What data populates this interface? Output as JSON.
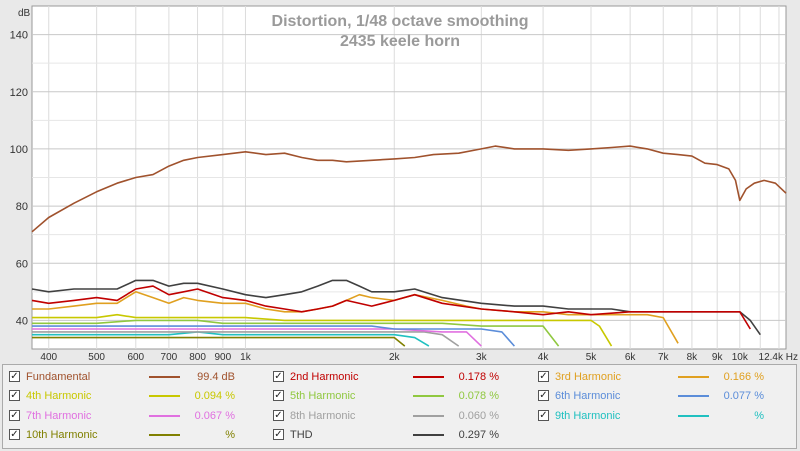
{
  "chart_data": {
    "type": "line",
    "title": "Distortion, 1/48 octave smoothing",
    "subtitle": "2435 keele horn",
    "ylabel": "dB",
    "xlabel": "",
    "x_scale": "log",
    "xlim": [
      370,
      12400
    ],
    "ylim": [
      30,
      150
    ],
    "grid": true,
    "y_ticks": [
      "40",
      "60",
      "80",
      "100",
      "120",
      "140"
    ],
    "y_tick_values": [
      40,
      60,
      80,
      100,
      120,
      140
    ],
    "x_tick_labels": [
      "400",
      "500",
      "600",
      "700",
      "800",
      "900",
      "1k",
      "2k",
      "3k",
      "4k",
      "5k",
      "6k",
      "7k",
      "8k",
      "9k",
      "10k",
      "12.4k Hz"
    ],
    "x_tick_values": [
      400,
      500,
      600,
      700,
      800,
      900,
      1000,
      2000,
      3000,
      4000,
      5000,
      6000,
      7000,
      8000,
      9000,
      10000,
      12400
    ],
    "series": [
      {
        "name": "Fundamental",
        "color": "#a0522d",
        "x": [
          370,
          400,
          450,
          500,
          550,
          600,
          650,
          700,
          750,
          800,
          900,
          1000,
          1100,
          1200,
          1300,
          1400,
          1500,
          1600,
          1800,
          2000,
          2200,
          2400,
          2700,
          3000,
          3200,
          3500,
          4000,
          4500,
          5000,
          5500,
          6000,
          6500,
          7000,
          7500,
          8000,
          8500,
          9000,
          9500,
          9800,
          10000,
          10300,
          10700,
          11200,
          11800,
          12400
        ],
        "y": [
          71,
          76,
          81,
          85,
          88,
          90,
          91,
          94,
          96,
          97,
          98,
          99,
          98,
          98.5,
          97,
          96,
          96,
          95.5,
          96,
          96.5,
          97,
          98,
          98.5,
          100,
          101,
          100,
          100,
          99.5,
          100,
          100.5,
          101,
          100,
          98.5,
          98,
          97.5,
          95,
          94.5,
          93,
          89,
          82,
          86,
          88,
          89,
          88,
          84.5
        ]
      },
      {
        "name": "2nd Harmonic",
        "color": "#c00000",
        "x": [
          370,
          400,
          450,
          500,
          550,
          600,
          650,
          700,
          750,
          800,
          900,
          1000,
          1100,
          1200,
          1300,
          1400,
          1500,
          1600,
          1800,
          2000,
          2200,
          2500,
          3000,
          3500,
          4000,
          4500,
          5000,
          6000,
          7000,
          8000,
          9000,
          10000,
          10500
        ],
        "y": [
          47,
          46,
          47,
          48,
          47,
          51,
          52,
          49,
          50,
          51,
          48,
          47,
          45,
          44,
          43,
          44,
          45,
          47,
          45,
          47,
          49,
          46,
          44,
          43,
          42,
          43,
          42,
          43,
          43,
          43,
          43,
          43,
          37
        ]
      },
      {
        "name": "3rd Harmonic",
        "color": "#e0a020",
        "x": [
          370,
          400,
          450,
          500,
          550,
          600,
          650,
          700,
          750,
          800,
          900,
          1000,
          1100,
          1200,
          1300,
          1400,
          1500,
          1600,
          1700,
          1800,
          2000,
          2200,
          2500,
          2800,
          3000,
          3500,
          4000,
          4500,
          5000,
          5500,
          6000,
          6500,
          7000,
          7500
        ],
        "y": [
          44,
          44,
          45,
          46,
          46,
          50,
          48,
          46,
          48,
          47,
          46,
          46,
          44,
          43,
          43,
          44,
          45,
          47,
          49,
          48,
          47,
          49,
          47,
          45,
          44,
          43,
          43,
          42,
          42,
          42,
          42,
          42,
          41,
          32
        ]
      },
      {
        "name": "4th Harmonic",
        "color": "#c8c800",
        "x": [
          370,
          400,
          450,
          500,
          550,
          600,
          700,
          800,
          900,
          1000,
          1200,
          1400,
          1600,
          1800,
          2000,
          2500,
          3000,
          3500,
          4000,
          4500,
          5000,
          5200,
          5500
        ],
        "y": [
          41,
          41,
          41,
          41,
          42,
          41,
          41,
          41,
          41,
          41,
          40,
          40,
          40,
          40,
          40,
          40,
          40,
          40,
          40,
          40,
          40,
          38,
          31
        ]
      },
      {
        "name": "5th Harmonic",
        "color": "#90c840",
        "x": [
          370,
          400,
          500,
          600,
          700,
          800,
          900,
          1000,
          1200,
          1400,
          1600,
          1800,
          2000,
          2500,
          3000,
          3500,
          4000,
          4300
        ],
        "y": [
          39,
          39,
          39,
          40,
          40,
          40,
          39,
          39,
          39,
          39,
          39,
          39,
          39,
          39,
          38,
          38,
          38,
          31
        ]
      },
      {
        "name": "6th Harmonic",
        "color": "#5b8dd9",
        "x": [
          370,
          400,
          500,
          600,
          700,
          800,
          900,
          1000,
          1200,
          1400,
          1600,
          1800,
          2000,
          2500,
          3000,
          3300,
          3500
        ],
        "y": [
          38,
          38,
          38,
          38,
          38,
          38,
          38,
          38,
          38,
          38,
          38,
          38,
          37,
          37,
          37,
          36,
          31
        ]
      },
      {
        "name": "7th Harmonic",
        "color": "#e070e0",
        "x": [
          370,
          400,
          500,
          600,
          700,
          800,
          900,
          1000,
          1200,
          1400,
          1600,
          1800,
          2000,
          2500,
          2800,
          3000
        ],
        "y": [
          37,
          37,
          37,
          37,
          37,
          37,
          37,
          37,
          37,
          37,
          37,
          37,
          37,
          36,
          36,
          31
        ]
      },
      {
        "name": "8th Harmonic",
        "color": "#a0a0a0",
        "x": [
          370,
          400,
          500,
          600,
          700,
          800,
          900,
          1000,
          1200,
          1400,
          1600,
          1800,
          2000,
          2300,
          2500,
          2700
        ],
        "y": [
          36,
          36,
          36,
          36,
          36,
          36,
          36,
          36,
          36,
          36,
          36,
          36,
          36,
          36,
          35,
          31
        ]
      },
      {
        "name": "9th Harmonic",
        "color": "#20c0c0",
        "x": [
          370,
          400,
          500,
          600,
          700,
          800,
          900,
          1000,
          1200,
          1400,
          1600,
          1800,
          2000,
          2200,
          2350
        ],
        "y": [
          35,
          35,
          35,
          35,
          35,
          36,
          35,
          35,
          35,
          35,
          35,
          35,
          35,
          34,
          31
        ]
      },
      {
        "name": "10th Harmonic",
        "color": "#808000",
        "x": [
          370,
          400,
          500,
          600,
          700,
          800,
          900,
          1000,
          1200,
          1400,
          1600,
          1800,
          2000,
          2100
        ],
        "y": [
          34,
          34,
          34,
          34,
          34,
          34,
          34,
          34,
          34,
          34,
          34,
          34,
          34,
          31
        ]
      },
      {
        "name": "THD",
        "color": "#404040",
        "x": [
          370,
          400,
          450,
          500,
          550,
          600,
          650,
          700,
          750,
          800,
          900,
          1000,
          1100,
          1200,
          1300,
          1400,
          1500,
          1600,
          1700,
          1800,
          2000,
          2200,
          2500,
          3000,
          3500,
          4000,
          4500,
          5000,
          5500,
          6000,
          7000,
          8000,
          9000,
          10000,
          10500,
          11000
        ],
        "y": [
          51,
          50,
          51,
          51,
          51,
          54,
          54,
          52,
          53,
          53,
          51,
          49,
          48,
          49,
          50,
          52,
          54,
          54,
          52,
          50,
          50,
          51,
          48,
          46,
          45,
          45,
          44,
          44,
          44,
          43,
          43,
          43,
          43,
          43,
          40,
          35
        ]
      }
    ]
  },
  "legend": [
    {
      "name": "Fundamental",
      "value": "99.4 dB",
      "color": "#a0522d",
      "checked": "✓"
    },
    {
      "name": "2nd Harmonic",
      "value": "0.178 %",
      "color": "#c00000",
      "checked": "✓"
    },
    {
      "name": "3rd Harmonic",
      "value": "0.166 %",
      "color": "#e0a020",
      "checked": "✓"
    },
    {
      "name": "4th Harmonic",
      "value": "0.094 %",
      "color": "#c8c800",
      "checked": "✓"
    },
    {
      "name": "5th Harmonic",
      "value": "0.078 %",
      "color": "#90c840",
      "checked": "✓"
    },
    {
      "name": "6th Harmonic",
      "value": "0.077 %",
      "color": "#5b8dd9",
      "checked": "✓"
    },
    {
      "name": "7th Harmonic",
      "value": "0.067 %",
      "color": "#e070e0",
      "checked": "✓"
    },
    {
      "name": "8th Harmonic",
      "value": "0.060 %",
      "color": "#a0a0a0",
      "checked": "✓"
    },
    {
      "name": "9th Harmonic",
      "value": "%",
      "color": "#20c0c0",
      "checked": "✓"
    },
    {
      "name": "10th Harmonic",
      "value": "%",
      "color": "#808000",
      "checked": "✓"
    },
    {
      "name": "THD",
      "value": "0.297 %",
      "color": "#404040",
      "checked": "✓"
    }
  ]
}
